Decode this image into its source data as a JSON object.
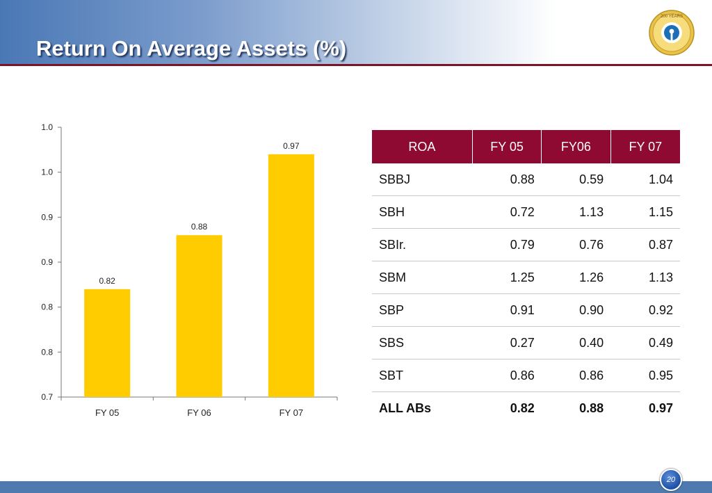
{
  "slide": {
    "title": "Return On Average Assets (%)",
    "page_number": "20",
    "logo_text": "200 YEARS",
    "colors": {
      "header_blue": "#4a78b5",
      "accent_maroon": "#8f0a32",
      "bar_yellow": "#ffcc00",
      "footer_blue": "#4e7ab0"
    }
  },
  "chart_data": {
    "type": "bar",
    "categories": [
      "FY 05",
      "FY 06",
      "FY 07"
    ],
    "values": [
      0.82,
      0.88,
      0.97
    ],
    "data_labels": [
      "0.82",
      "0.88",
      "0.97"
    ],
    "ytick_labels": [
      "0.7",
      "0.8",
      "0.8",
      "0.9",
      "0.9",
      "1.0",
      "1.0"
    ],
    "ylim": [
      0.7,
      1.0
    ],
    "grid": false,
    "legend": "none",
    "title": "",
    "xlabel": "",
    "ylabel": ""
  },
  "table": {
    "headers": [
      "ROA",
      "FY 05",
      "FY06",
      "FY 07"
    ],
    "rows": [
      [
        "SBBJ",
        "0.88",
        "0.59",
        "1.04"
      ],
      [
        "SBH",
        "0.72",
        "1.13",
        "1.15"
      ],
      [
        "SBIr.",
        "0.79",
        "0.76",
        "0.87"
      ],
      [
        "SBM",
        "1.25",
        "1.26",
        "1.13"
      ],
      [
        "SBP",
        "0.91",
        "0.90",
        "0.92"
      ],
      [
        "SBS",
        "0.27",
        "0.40",
        "0.49"
      ],
      [
        "SBT",
        "0.86",
        "0.86",
        "0.95"
      ]
    ],
    "total_row": [
      "ALL ABs",
      "0.82",
      "0.88",
      "0.97"
    ]
  }
}
